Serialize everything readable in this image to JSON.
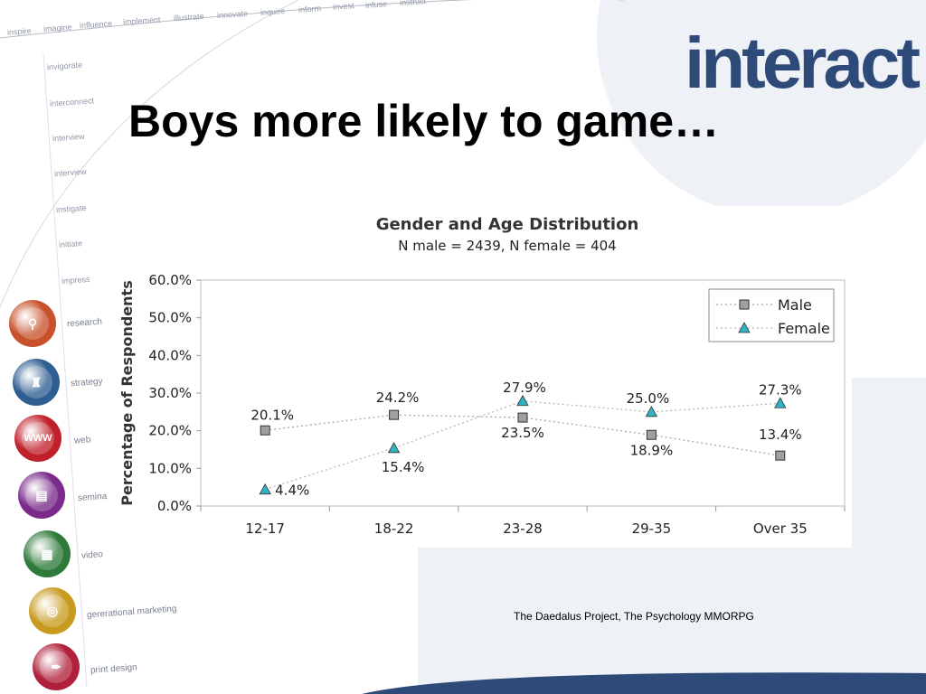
{
  "slide": {
    "title": "Boys more likely to game…",
    "logo_text": "interact",
    "source": "The Daedalus Project, The Psychology MMORPG",
    "top_words": [
      "inspire",
      "imagine",
      "influence",
      "implement",
      "illustrate",
      "innovate",
      "inquire",
      "inform",
      "invest",
      "infuse",
      "instruct"
    ],
    "side_words": [
      "invigorate",
      "interconnect",
      "interview",
      "interview",
      "instigate",
      "initiate",
      "impress"
    ],
    "side_categories": [
      {
        "label": "research",
        "icon": "magnifier-icon",
        "color": "#c8502a"
      },
      {
        "label": "strategy",
        "icon": "chess-piece-icon",
        "color": "#2f5e93"
      },
      {
        "label": "web",
        "icon": "www-icon",
        "color": "#c0202a"
      },
      {
        "label": "semina",
        "icon": "presentation-icon",
        "color": "#7a2a8a"
      },
      {
        "label": "video",
        "icon": "clapperboard-icon",
        "color": "#2e7a3a"
      },
      {
        "label": "gererational marketing",
        "icon": "target-icon",
        "color": "#c89a20"
      },
      {
        "label": "print design",
        "icon": "pen-nib-icon",
        "color": "#b0203a"
      }
    ],
    "colors": {
      "navy": "#2e4a78",
      "grid_band": "#eef1f6",
      "male_marker": "#a0a0a0",
      "female_marker": "#30b4c4"
    }
  },
  "chart_data": {
    "type": "line",
    "title": "Gender and Age Distribution",
    "subtitle": "N male = 2439, N female = 404",
    "xlabel": "",
    "ylabel": "Percentage of Respondents",
    "categories": [
      "12-17",
      "18-22",
      "23-28",
      "29-35",
      "Over 35"
    ],
    "ylim": [
      0,
      60
    ],
    "yticks": [
      "0.0%",
      "10.0%",
      "20.0%",
      "30.0%",
      "40.0%",
      "50.0%",
      "60.0%"
    ],
    "grid": false,
    "legend_position": "top-right",
    "series": [
      {
        "name": "Male",
        "marker": "square",
        "values": [
          20.1,
          24.2,
          23.5,
          18.9,
          13.4
        ],
        "labels": [
          "20.1%",
          "24.2%",
          "23.5%",
          "18.9%",
          "13.4%"
        ]
      },
      {
        "name": "Female",
        "marker": "triangle",
        "values": [
          4.4,
          15.4,
          27.9,
          25.0,
          27.3
        ],
        "labels": [
          "4.4%",
          "15.4%",
          "27.9%",
          "25.0%",
          "27.3%"
        ]
      }
    ]
  }
}
